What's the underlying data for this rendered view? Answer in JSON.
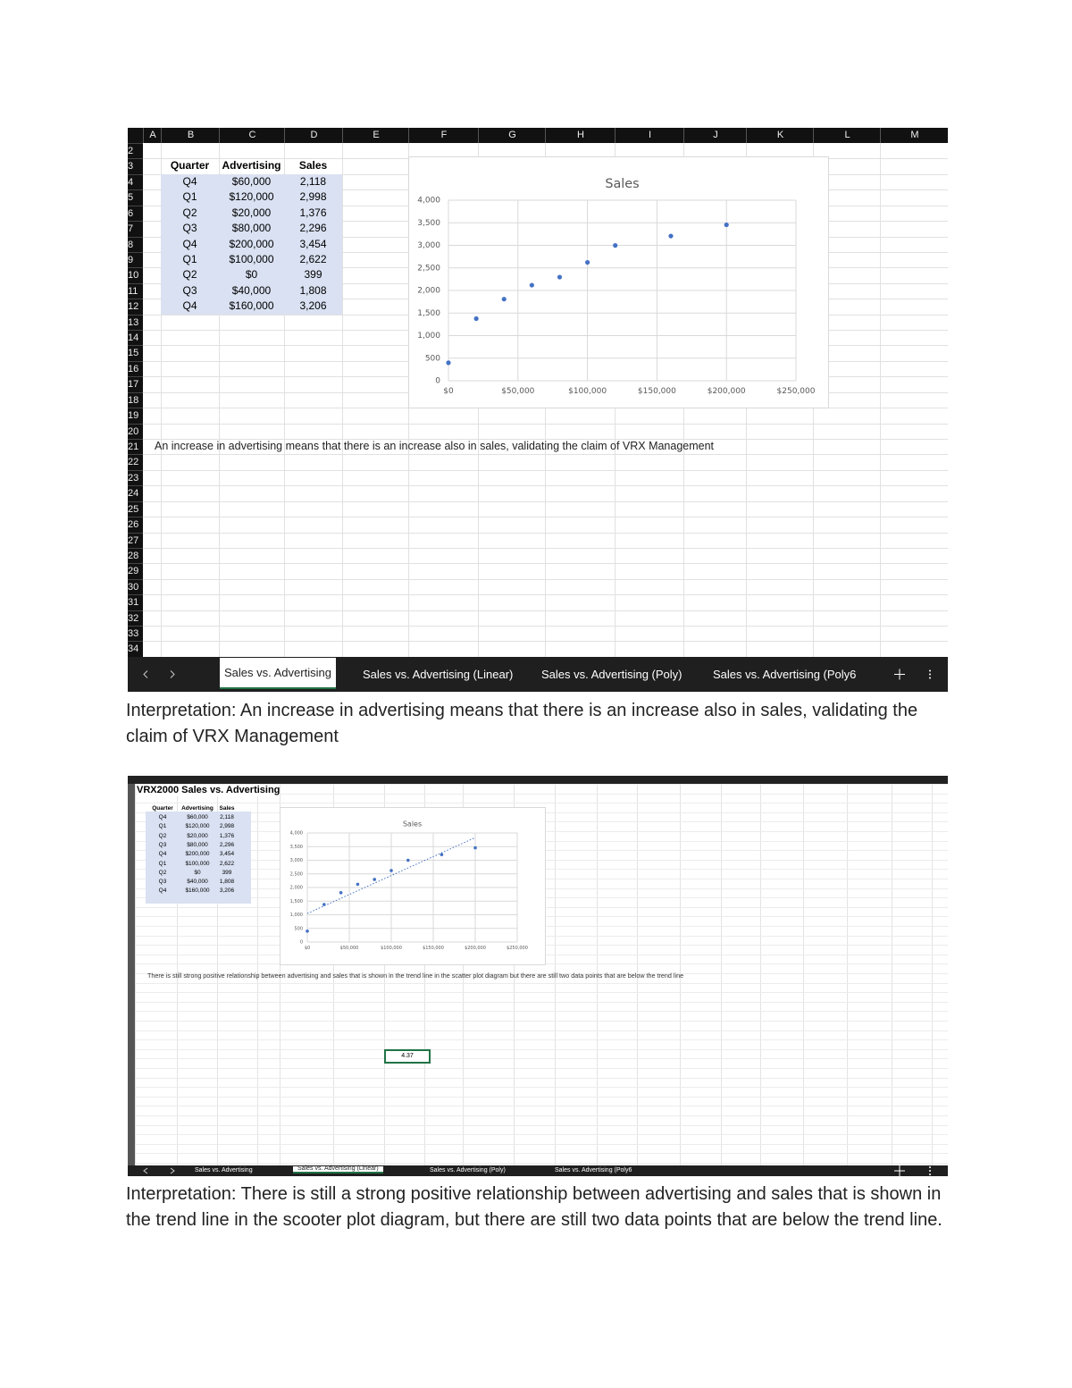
{
  "sheet1": {
    "columns": [
      "A",
      "B",
      "C",
      "D",
      "E",
      "F",
      "G",
      "H",
      "I",
      "J",
      "K",
      "L",
      "M"
    ],
    "rows": [
      2,
      3,
      4,
      5,
      6,
      7,
      8,
      9,
      10,
      11,
      12,
      13,
      14,
      15,
      16,
      17,
      18,
      19,
      20,
      21,
      22,
      23,
      24,
      25,
      26,
      27,
      28,
      29,
      30,
      31,
      32,
      33,
      34
    ],
    "table": {
      "header": [
        "Quarter",
        "Advertising",
        "Sales"
      ],
      "rows": [
        [
          "Q4",
          "$60,000",
          "2,118"
        ],
        [
          "Q1",
          "$120,000",
          "2,998"
        ],
        [
          "Q2",
          "$20,000",
          "1,376"
        ],
        [
          "Q3",
          "$80,000",
          "2,296"
        ],
        [
          "Q4",
          "$200,000",
          "3,454"
        ],
        [
          "Q1",
          "$100,000",
          "2,622"
        ],
        [
          "Q2",
          "$0",
          "399"
        ],
        [
          "Q3",
          "$40,000",
          "1,808"
        ],
        [
          "Q4",
          "$160,000",
          "3,206"
        ]
      ]
    },
    "chart": {
      "type": "scatter",
      "title": "Sales",
      "color": "#4472c4",
      "grid": true,
      "trendline": false,
      "x": [
        60000,
        120000,
        20000,
        80000,
        200000,
        100000,
        0,
        40000,
        160000
      ],
      "y": [
        2118,
        2998,
        1376,
        2296,
        3454,
        2622,
        399,
        1808,
        3206
      ],
      "xlim": [
        0,
        250000
      ],
      "ylim": [
        0,
        4000
      ],
      "xticks": [
        {
          "value": 0,
          "label": "$0"
        },
        {
          "value": 50000,
          "label": "$50,000"
        },
        {
          "value": 100000,
          "label": "$100,000"
        },
        {
          "value": 150000,
          "label": "$150,000"
        },
        {
          "value": 200000,
          "label": "$200,000"
        },
        {
          "value": 250000,
          "label": "$250,000"
        }
      ],
      "yticks": [
        0,
        500,
        {
          "value": 1000,
          "label": "1,000"
        },
        {
          "value": 1500,
          "label": "1,500"
        },
        {
          "value": 2000,
          "label": "2,000"
        },
        {
          "value": 2500,
          "label": "2,500"
        },
        {
          "value": 3000,
          "label": "3,000"
        },
        {
          "value": 3500,
          "label": "3,500"
        },
        {
          "value": 4000,
          "label": "4,000"
        }
      ]
    },
    "note": "An increase in advertising means that there is an increase also in sales, validating the claim of VRX Management",
    "tabs": [
      "Sales vs. Advertising",
      "Sales vs. Advertising (Linear)",
      "Sales vs. Advertising (Poly)",
      "Sales vs. Advertising (Poly6"
    ],
    "active_tab": 0
  },
  "interpretation1": "Interpretation: An increase in advertising means that there is an increase also in sales, validating the claim of VRX Management",
  "sheet2": {
    "title": "VRX2000 Sales vs. Advertising",
    "table": {
      "header": [
        "Quarter",
        "Advertising",
        "Sales"
      ],
      "rows": [
        [
          "Q4",
          "$60,000",
          "2,118"
        ],
        [
          "Q1",
          "$120,000",
          "2,998"
        ],
        [
          "Q2",
          "$20,000",
          "1,376"
        ],
        [
          "Q3",
          "$80,000",
          "2,296"
        ],
        [
          "Q4",
          "$200,000",
          "3,454"
        ],
        [
          "Q1",
          "$100,000",
          "2,622"
        ],
        [
          "Q2",
          "$0",
          "399"
        ],
        [
          "Q3",
          "$40,000",
          "1,808"
        ],
        [
          "Q4",
          "$160,000",
          "3,206"
        ]
      ]
    },
    "chart": {
      "type": "scatter",
      "title": "Sales",
      "color": "#4472c4",
      "grid": true,
      "trendline": true,
      "x": [
        60000,
        120000,
        20000,
        80000,
        200000,
        100000,
        0,
        40000,
        160000
      ],
      "y": [
        2118,
        2998,
        1376,
        2296,
        3454,
        2622,
        399,
        1808,
        3206
      ],
      "xlim": [
        0,
        250000
      ],
      "ylim": [
        0,
        4000
      ],
      "xticks": [
        {
          "value": 0,
          "label": "$0"
        },
        {
          "value": 50000,
          "label": "$50,000"
        },
        {
          "value": 100000,
          "label": "$100,000"
        },
        {
          "value": 150000,
          "label": "$150,000"
        },
        {
          "value": 200000,
          "label": "$200,000"
        },
        {
          "value": 250000,
          "label": "$250,000"
        }
      ],
      "yticks": [
        0,
        500,
        {
          "value": 1000,
          "label": "1,000"
        },
        {
          "value": 1500,
          "label": "1,500"
        },
        {
          "value": 2000,
          "label": "2,000"
        },
        {
          "value": 2500,
          "label": "2,500"
        },
        {
          "value": 3000,
          "label": "3,000"
        },
        {
          "value": 3500,
          "label": "3,500"
        },
        {
          "value": 4000,
          "label": "4,000"
        }
      ]
    },
    "note": "There is still strong positive relationship between advertising and sales that is shown in the trend line in the scatter plot diagram but there are still two data points that are below the trend line",
    "cell": "4.37",
    "tabs": [
      "Sales vs. Advertising",
      "Sales vs. Advertising (Linear)",
      "Sales vs. Advertising (Poly)",
      "Sales vs. Advertising (Poly6"
    ],
    "active_tab": 1
  },
  "interpretation2": "Interpretation: There is still a strong positive relationship between advertising and sales that is shown in the trend line in the scooter plot diagram, but there are still two data points that are below the trend line."
}
